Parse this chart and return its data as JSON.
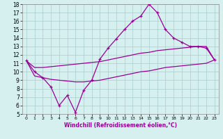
{
  "xlabel": "Windchill (Refroidissement éolien,°C)",
  "bg_color": "#d6f0f0",
  "line_color": "#990099",
  "grid_color": "#aacccc",
  "xlim": [
    -0.5,
    23.5
  ],
  "ylim": [
    5,
    18
  ],
  "xticks": [
    0,
    1,
    2,
    3,
    4,
    5,
    6,
    7,
    8,
    9,
    10,
    11,
    12,
    13,
    14,
    15,
    16,
    17,
    18,
    19,
    20,
    21,
    22,
    23
  ],
  "yticks": [
    5,
    6,
    7,
    8,
    9,
    10,
    11,
    12,
    13,
    14,
    15,
    16,
    17,
    18
  ],
  "x": [
    0,
    1,
    2,
    3,
    4,
    5,
    6,
    7,
    8,
    9,
    10,
    11,
    12,
    13,
    14,
    15,
    16,
    17,
    18,
    19,
    20,
    21,
    22,
    23
  ],
  "y_zigzag": [
    11.3,
    10.0,
    9.3,
    8.2,
    6.0,
    7.2,
    5.2,
    7.8,
    9.0,
    11.5,
    12.8,
    13.9,
    15.0,
    16.0,
    16.6,
    18.0,
    17.0,
    15.0,
    14.0,
    13.5,
    13.0,
    13.0,
    12.8,
    11.4
  ],
  "y_upper": [
    11.3,
    10.5,
    10.5,
    10.6,
    10.7,
    10.8,
    10.9,
    11.0,
    11.1,
    11.2,
    11.4,
    11.6,
    11.8,
    12.0,
    12.2,
    12.3,
    12.5,
    12.6,
    12.7,
    12.8,
    12.9,
    13.0,
    13.0,
    11.4
  ],
  "y_lower": [
    11.3,
    9.5,
    9.3,
    9.1,
    9.0,
    8.9,
    8.8,
    8.8,
    8.9,
    9.0,
    9.2,
    9.4,
    9.6,
    9.8,
    10.0,
    10.1,
    10.3,
    10.5,
    10.6,
    10.7,
    10.8,
    10.9,
    11.0,
    11.4
  ]
}
